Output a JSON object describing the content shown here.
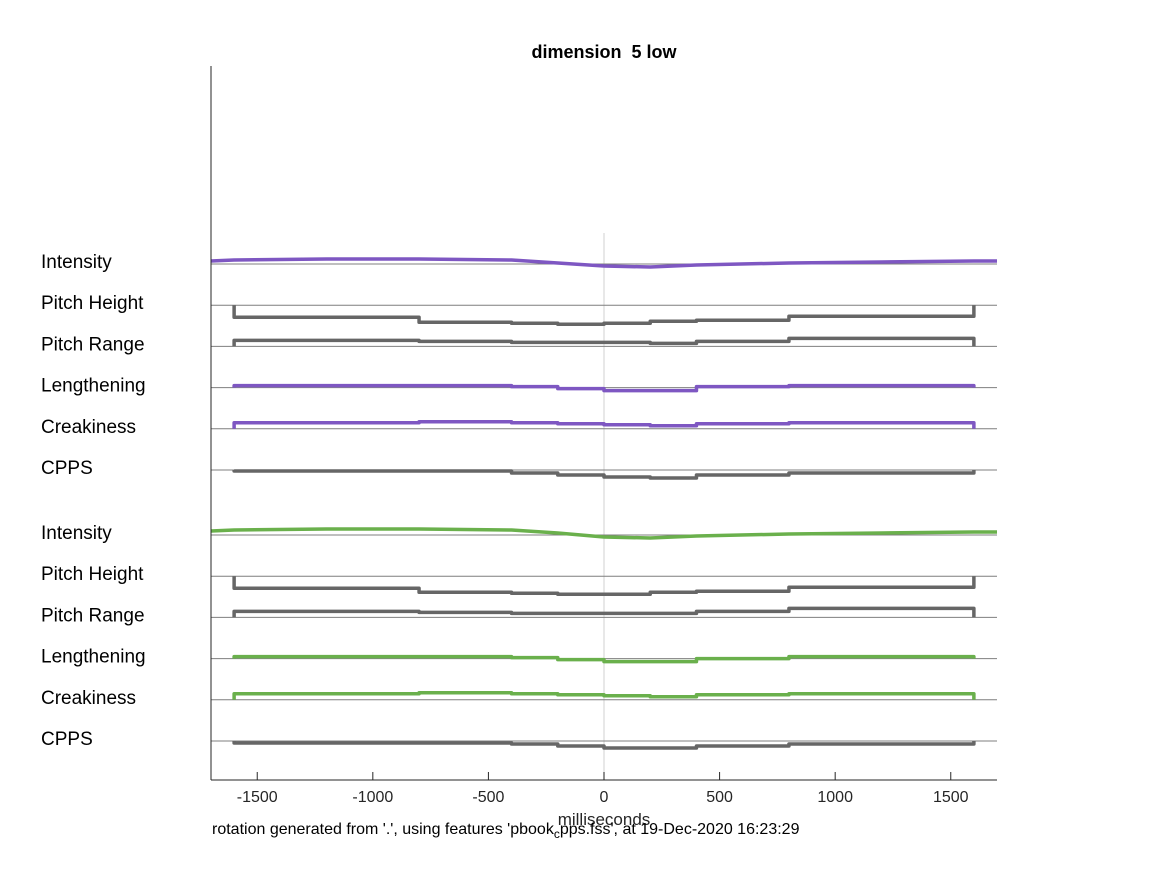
{
  "chart_data": {
    "type": "line",
    "title": "dimension  5 low",
    "xlabel": "milliseconds",
    "xlim": [
      -1700,
      1700
    ],
    "xticks": [
      -1500,
      -1000,
      -500,
      0,
      500,
      1000,
      1500
    ],
    "xtick_labels": [
      "-1500",
      "-1000",
      "-500",
      "0",
      "500",
      "1000",
      "1500"
    ],
    "colors": {
      "purple": "#7e57c2",
      "green": "#6ab04c",
      "gray": "#666666",
      "baseline": "#7f7f7f",
      "zero_line": "#d9d9d9"
    },
    "groups": [
      {
        "tracks": [
          {
            "label": "Intensity",
            "color": "purple",
            "style": "smooth",
            "x": [
              -1700,
              -1600,
              -1200,
              -800,
              -400,
              -200,
              0,
              200,
              400,
              800,
              1200,
              1600,
              1700
            ],
            "offset": [
              3,
              4,
              5,
              5,
              4,
              1,
              -2,
              -3,
              -1,
              1,
              2,
              3,
              3
            ]
          },
          {
            "label": "Pitch Height",
            "color": "gray",
            "style": "step",
            "x": [
              -1600,
              -800,
              -400,
              -200,
              0,
              200,
              400,
              800,
              1600
            ],
            "offset": [
              -12,
              -17,
              -18,
              -19,
              -18,
              -16,
              -15,
              -11
            ]
          },
          {
            "label": "Pitch Range",
            "color": "gray",
            "style": "step",
            "x": [
              -1600,
              -800,
              -400,
              -200,
              0,
              200,
              400,
              800,
              1600
            ],
            "offset": [
              6,
              5,
              4,
              4,
              4,
              3,
              5,
              8
            ]
          },
          {
            "label": "Lengthening",
            "color": "purple",
            "style": "step",
            "x": [
              -1600,
              -800,
              -400,
              -200,
              0,
              200,
              400,
              800,
              1600
            ],
            "offset": [
              2,
              2,
              1,
              -1,
              -3,
              -3,
              1,
              2
            ]
          },
          {
            "label": "Creakiness",
            "color": "purple",
            "style": "step",
            "x": [
              -1600,
              -800,
              -400,
              -200,
              0,
              200,
              400,
              800,
              1600
            ],
            "offset": [
              6,
              7,
              6,
              5,
              4,
              3,
              5,
              6
            ]
          },
          {
            "label": "CPPS",
            "color": "gray",
            "style": "step",
            "x": [
              -1600,
              -800,
              -400,
              -200,
              0,
              200,
              400,
              800,
              1600
            ],
            "offset": [
              -1,
              -1,
              -3,
              -5,
              -7,
              -8,
              -5,
              -3
            ]
          }
        ]
      },
      {
        "tracks": [
          {
            "label": "Intensity",
            "color": "green",
            "style": "smooth",
            "x": [
              -1700,
              -1600,
              -1200,
              -800,
              -400,
              -200,
              0,
              200,
              400,
              800,
              1200,
              1600,
              1700
            ],
            "offset": [
              4,
              5,
              6,
              6,
              5,
              2,
              -2,
              -3,
              -1,
              1,
              2,
              3,
              3
            ]
          },
          {
            "label": "Pitch Height",
            "color": "gray",
            "style": "step",
            "x": [
              -1600,
              -800,
              -400,
              -200,
              0,
              200,
              400,
              800,
              1600
            ],
            "offset": [
              -12,
              -16,
              -17,
              -18,
              -18,
              -16,
              -15,
              -11
            ]
          },
          {
            "label": "Pitch Range",
            "color": "gray",
            "style": "step",
            "x": [
              -1600,
              -800,
              -400,
              -200,
              0,
              200,
              400,
              800,
              1600
            ],
            "offset": [
              6,
              5,
              4,
              4,
              4,
              4,
              6,
              9
            ]
          },
          {
            "label": "Lengthening",
            "color": "green",
            "style": "step",
            "x": [
              -1600,
              -800,
              -400,
              -200,
              0,
              200,
              400,
              800,
              1600
            ],
            "offset": [
              2,
              2,
              1,
              -1,
              -3,
              -3,
              0,
              2
            ]
          },
          {
            "label": "Creakiness",
            "color": "green",
            "style": "step",
            "x": [
              -1600,
              -800,
              -400,
              -200,
              0,
              200,
              400,
              800,
              1600
            ],
            "offset": [
              6,
              7,
              6,
              5,
              4,
              3,
              5,
              6
            ]
          },
          {
            "label": "CPPS",
            "color": "gray",
            "style": "step",
            "x": [
              -1600,
              -800,
              -400,
              -200,
              0,
              200,
              400,
              800,
              1600
            ],
            "offset": [
              -2,
              -2,
              -3,
              -5,
              -7,
              -7,
              -5,
              -3
            ]
          }
        ]
      }
    ]
  },
  "footer": {
    "prefix": "rotation generated from '.', using features 'pbook",
    "subscript": "c",
    "suffix": "pps.fss', at 19-Dec-2020 16:23:29"
  }
}
